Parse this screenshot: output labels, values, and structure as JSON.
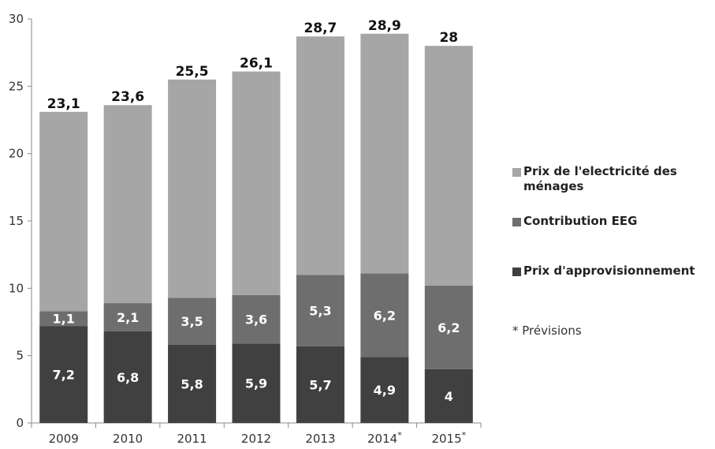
{
  "chart_data": {
    "type": "bar",
    "stacked": true,
    "categories": [
      "2009",
      "2010",
      "2011",
      "2012",
      "2013",
      "2014*",
      "2015*"
    ],
    "series": [
      {
        "name": "Prix d'approvisionnement",
        "values": [
          7.2,
          6.8,
          5.8,
          5.9,
          5.7,
          4.9,
          4
        ],
        "labels": [
          "7,2",
          "6,8",
          "5,8",
          "5,9",
          "5,7",
          "4,9",
          "4"
        ],
        "color": "#404040"
      },
      {
        "name": "Contribution EEG",
        "values": [
          1.1,
          2.1,
          3.5,
          3.6,
          5.3,
          6.2,
          6.2
        ],
        "labels": [
          "1,1",
          "2,1",
          "3,5",
          "3,6",
          "5,3",
          "6,2",
          "6,2"
        ],
        "color": "#6e6e6e"
      },
      {
        "name": "Prix de l'electricité des ménages",
        "values": [
          14.8,
          14.7,
          16.2,
          16.6,
          17.7,
          17.8,
          17.8
        ],
        "color": "#a6a6a6"
      }
    ],
    "totals": [
      23.1,
      23.6,
      25.5,
      26.1,
      28.7,
      28.9,
      28
    ],
    "total_labels": [
      "23,1",
      "23,6",
      "25,5",
      "26,1",
      "28,7",
      "28,9",
      "28"
    ],
    "y_ticks": [
      0,
      5,
      10,
      15,
      20,
      25,
      30
    ],
    "ylim": [
      0,
      30
    ],
    "grid": false,
    "legend_position": "right",
    "note": "* Prévisions"
  }
}
